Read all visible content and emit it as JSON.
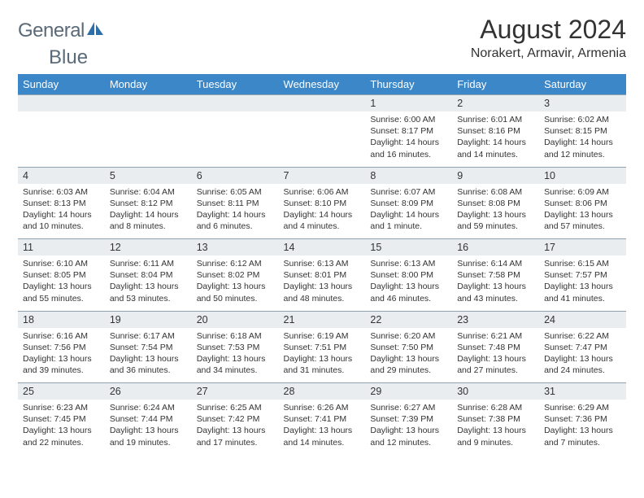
{
  "logo": {
    "text_left": "General",
    "text_right": "Blue",
    "text_color": "#5a6a78",
    "sail_color": "#2f6fa8"
  },
  "header": {
    "title": "August 2024",
    "location": "Norakert, Armavir, Armenia"
  },
  "colors": {
    "header_bg": "#3b87c8",
    "header_text": "#ffffff",
    "daynum_bg": "#e9edef",
    "row_border": "#8fa3b3",
    "body_text": "#333333"
  },
  "weekdays": [
    "Sunday",
    "Monday",
    "Tuesday",
    "Wednesday",
    "Thursday",
    "Friday",
    "Saturday"
  ],
  "weeks": [
    {
      "nums": [
        "",
        "",
        "",
        "",
        "1",
        "2",
        "3"
      ],
      "cells": [
        "",
        "",
        "",
        "",
        "Sunrise: 6:00 AM\nSunset: 8:17 PM\nDaylight: 14 hours and 16 minutes.",
        "Sunrise: 6:01 AM\nSunset: 8:16 PM\nDaylight: 14 hours and 14 minutes.",
        "Sunrise: 6:02 AM\nSunset: 8:15 PM\nDaylight: 14 hours and 12 minutes."
      ]
    },
    {
      "nums": [
        "4",
        "5",
        "6",
        "7",
        "8",
        "9",
        "10"
      ],
      "cells": [
        "Sunrise: 6:03 AM\nSunset: 8:13 PM\nDaylight: 14 hours and 10 minutes.",
        "Sunrise: 6:04 AM\nSunset: 8:12 PM\nDaylight: 14 hours and 8 minutes.",
        "Sunrise: 6:05 AM\nSunset: 8:11 PM\nDaylight: 14 hours and 6 minutes.",
        "Sunrise: 6:06 AM\nSunset: 8:10 PM\nDaylight: 14 hours and 4 minutes.",
        "Sunrise: 6:07 AM\nSunset: 8:09 PM\nDaylight: 14 hours and 1 minute.",
        "Sunrise: 6:08 AM\nSunset: 8:08 PM\nDaylight: 13 hours and 59 minutes.",
        "Sunrise: 6:09 AM\nSunset: 8:06 PM\nDaylight: 13 hours and 57 minutes."
      ]
    },
    {
      "nums": [
        "11",
        "12",
        "13",
        "14",
        "15",
        "16",
        "17"
      ],
      "cells": [
        "Sunrise: 6:10 AM\nSunset: 8:05 PM\nDaylight: 13 hours and 55 minutes.",
        "Sunrise: 6:11 AM\nSunset: 8:04 PM\nDaylight: 13 hours and 53 minutes.",
        "Sunrise: 6:12 AM\nSunset: 8:02 PM\nDaylight: 13 hours and 50 minutes.",
        "Sunrise: 6:13 AM\nSunset: 8:01 PM\nDaylight: 13 hours and 48 minutes.",
        "Sunrise: 6:13 AM\nSunset: 8:00 PM\nDaylight: 13 hours and 46 minutes.",
        "Sunrise: 6:14 AM\nSunset: 7:58 PM\nDaylight: 13 hours and 43 minutes.",
        "Sunrise: 6:15 AM\nSunset: 7:57 PM\nDaylight: 13 hours and 41 minutes."
      ]
    },
    {
      "nums": [
        "18",
        "19",
        "20",
        "21",
        "22",
        "23",
        "24"
      ],
      "cells": [
        "Sunrise: 6:16 AM\nSunset: 7:56 PM\nDaylight: 13 hours and 39 minutes.",
        "Sunrise: 6:17 AM\nSunset: 7:54 PM\nDaylight: 13 hours and 36 minutes.",
        "Sunrise: 6:18 AM\nSunset: 7:53 PM\nDaylight: 13 hours and 34 minutes.",
        "Sunrise: 6:19 AM\nSunset: 7:51 PM\nDaylight: 13 hours and 31 minutes.",
        "Sunrise: 6:20 AM\nSunset: 7:50 PM\nDaylight: 13 hours and 29 minutes.",
        "Sunrise: 6:21 AM\nSunset: 7:48 PM\nDaylight: 13 hours and 27 minutes.",
        "Sunrise: 6:22 AM\nSunset: 7:47 PM\nDaylight: 13 hours and 24 minutes."
      ]
    },
    {
      "nums": [
        "25",
        "26",
        "27",
        "28",
        "29",
        "30",
        "31"
      ],
      "cells": [
        "Sunrise: 6:23 AM\nSunset: 7:45 PM\nDaylight: 13 hours and 22 minutes.",
        "Sunrise: 6:24 AM\nSunset: 7:44 PM\nDaylight: 13 hours and 19 minutes.",
        "Sunrise: 6:25 AM\nSunset: 7:42 PM\nDaylight: 13 hours and 17 minutes.",
        "Sunrise: 6:26 AM\nSunset: 7:41 PM\nDaylight: 13 hours and 14 minutes.",
        "Sunrise: 6:27 AM\nSunset: 7:39 PM\nDaylight: 13 hours and 12 minutes.",
        "Sunrise: 6:28 AM\nSunset: 7:38 PM\nDaylight: 13 hours and 9 minutes.",
        "Sunrise: 6:29 AM\nSunset: 7:36 PM\nDaylight: 13 hours and 7 minutes."
      ]
    }
  ]
}
